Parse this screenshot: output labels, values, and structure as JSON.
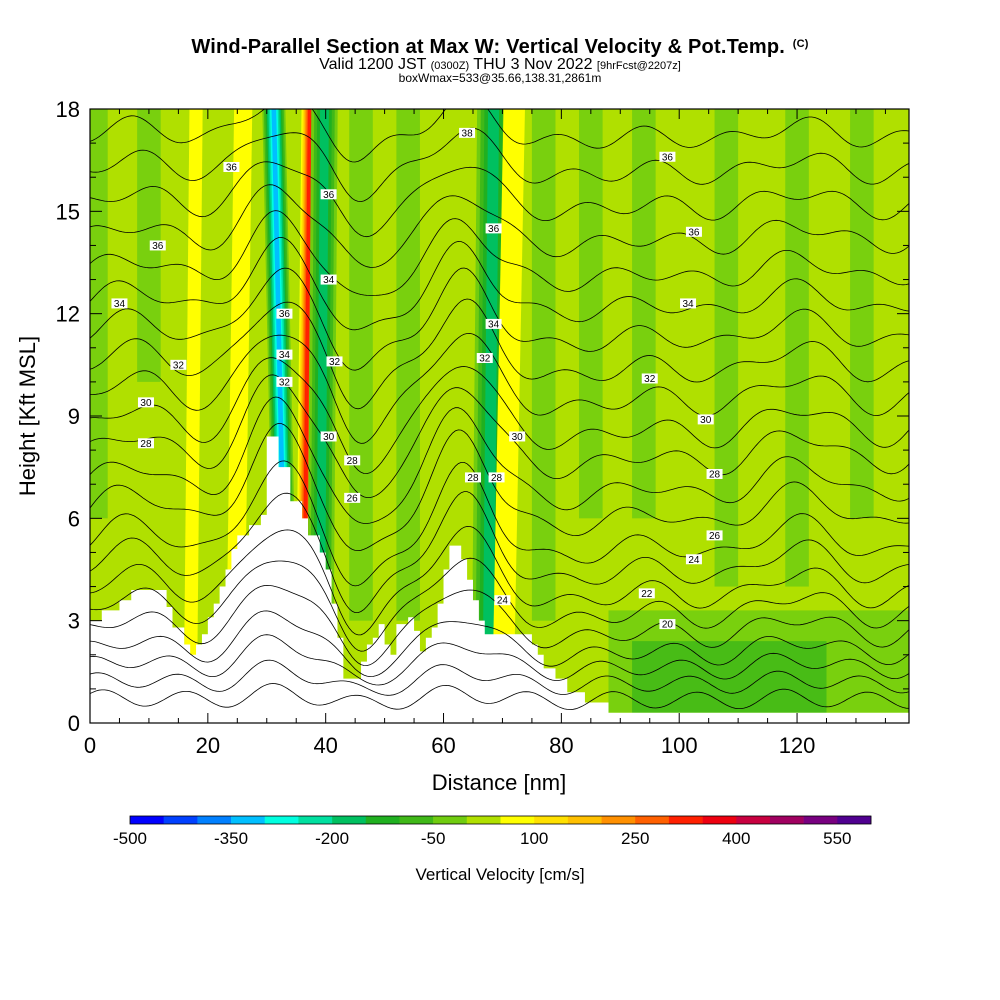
{
  "title": {
    "main": "Wind-Parallel Section at Max W: Vertical Velocity & Pot.Temp.",
    "copyright": "(C)",
    "valid_prefix": "Valid 1200 JST",
    "valid_utc": "(0300Z)",
    "valid_date": "THU 3 Nov 2022",
    "forecast": "[9hrFcst@2207z]",
    "boxwmax": "boxWmax=533@35.66,138.31,2861m"
  },
  "chart_data": {
    "type": "heatmap",
    "xlabel": "Distance [nm]",
    "ylabel": "Height [Kft MSL]",
    "xlim": [
      0,
      139
    ],
    "ylim": [
      0,
      18
    ],
    "x_ticks": [
      0,
      20,
      40,
      60,
      80,
      100,
      120
    ],
    "y_ticks": [
      0,
      3,
      6,
      9,
      12,
      15,
      18
    ],
    "colorbar": {
      "label": "Vertical Velocity [cm/s]",
      "tick_labels": [
        "-500",
        "-350",
        "-200",
        "-50",
        "100",
        "250",
        "400",
        "550"
      ],
      "colors": [
        "#0000ff",
        "#0040ff",
        "#0080ff",
        "#00bfff",
        "#00ffe0",
        "#00e0a0",
        "#00c060",
        "#20b020",
        "#40b818",
        "#70cc10",
        "#b0e000",
        "#ffff00",
        "#ffe000",
        "#ffc000",
        "#ff9000",
        "#ff6000",
        "#ff2000",
        "#ee0010",
        "#c80040",
        "#a00060",
        "#780080",
        "#500090"
      ]
    },
    "background_band": "#b0e000",
    "updraft_bands": [
      {
        "x_bottom": 33.5,
        "x_top": 31.2,
        "peak": "#00bfff",
        "width": 1.4
      },
      {
        "x_bottom": 36.2,
        "x_top": 37.3,
        "peak": "#ff2000",
        "width": 1.0
      },
      {
        "x_bottom": 39.0,
        "x_top": 39.8,
        "peak": "#00c060",
        "width": 1.6
      },
      {
        "x_bottom": 67.5,
        "x_top": 68.5,
        "peak": "#00c060",
        "width": 2.0
      },
      {
        "x_bottom": 70.0,
        "x_top": 72.0,
        "peak": "#ffff00",
        "width": 1.3
      },
      {
        "x_bottom": 24.5,
        "x_top": 26.0,
        "peak": "#ffff00",
        "width": 1.1
      },
      {
        "x_bottom": 17.0,
        "x_top": 18.0,
        "peak": "#ffff00",
        "width": 0.8
      }
    ],
    "terrain": [
      [
        0,
        3.0
      ],
      [
        2,
        3.0
      ],
      [
        2,
        3.3
      ],
      [
        5,
        3.3
      ],
      [
        5,
        3.6
      ],
      [
        7,
        3.6
      ],
      [
        7,
        3.9
      ],
      [
        13,
        3.9
      ],
      [
        13,
        3.4
      ],
      [
        14,
        3.4
      ],
      [
        14,
        2.8
      ],
      [
        16,
        2.8
      ],
      [
        16,
        2.3
      ],
      [
        17,
        2.3
      ],
      [
        17,
        2.0
      ],
      [
        18,
        2.0
      ],
      [
        18,
        2.3
      ],
      [
        19,
        2.3
      ],
      [
        19,
        2.6
      ],
      [
        20,
        2.6
      ],
      [
        20,
        3.1
      ],
      [
        21,
        3.1
      ],
      [
        21,
        3.5
      ],
      [
        22,
        3.5
      ],
      [
        22,
        4.0
      ],
      [
        23,
        4.0
      ],
      [
        23,
        4.5
      ],
      [
        24,
        4.5
      ],
      [
        24,
        5.1
      ],
      [
        25,
        5.1
      ],
      [
        25,
        5.5
      ],
      [
        27,
        5.5
      ],
      [
        27,
        5.8
      ],
      [
        29,
        5.8
      ],
      [
        29,
        6.1
      ],
      [
        30,
        6.1
      ],
      [
        30,
        8.4
      ],
      [
        32,
        8.4
      ],
      [
        32,
        7.5
      ],
      [
        34,
        7.5
      ],
      [
        34,
        6.5
      ],
      [
        36,
        6.5
      ],
      [
        36,
        6.0
      ],
      [
        37,
        6.0
      ],
      [
        37,
        5.5
      ],
      [
        39,
        5.5
      ],
      [
        39,
        5.0
      ],
      [
        40,
        5.0
      ],
      [
        40,
        4.5
      ],
      [
        41,
        4.5
      ],
      [
        41,
        3.5
      ],
      [
        42,
        3.5
      ],
      [
        42,
        2.5
      ],
      [
        43,
        2.5
      ],
      [
        43,
        1.3
      ],
      [
        46,
        1.3
      ],
      [
        46,
        1.8
      ],
      [
        47,
        1.8
      ],
      [
        47,
        2.3
      ],
      [
        48,
        2.3
      ],
      [
        48,
        2.5
      ],
      [
        49,
        2.5
      ],
      [
        49,
        2.9
      ],
      [
        50,
        2.9
      ],
      [
        50,
        2.3
      ],
      [
        51,
        2.3
      ],
      [
        51,
        2.0
      ],
      [
        52,
        2.0
      ],
      [
        52,
        2.9
      ],
      [
        54,
        2.9
      ],
      [
        54,
        3.1
      ],
      [
        55,
        3.1
      ],
      [
        55,
        2.7
      ],
      [
        56,
        2.7
      ],
      [
        56,
        2.1
      ],
      [
        57,
        2.1
      ],
      [
        57,
        2.5
      ],
      [
        58,
        2.5
      ],
      [
        58,
        2.8
      ],
      [
        59,
        2.8
      ],
      [
        59,
        3.5
      ],
      [
        60,
        3.5
      ],
      [
        60,
        4.5
      ],
      [
        61,
        4.5
      ],
      [
        61,
        5.2
      ],
      [
        63,
        5.2
      ],
      [
        63,
        4.8
      ],
      [
        64,
        4.8
      ],
      [
        64,
        4.2
      ],
      [
        65,
        4.2
      ],
      [
        65,
        3.6
      ],
      [
        66,
        3.6
      ],
      [
        66,
        3.0
      ],
      [
        67,
        3.0
      ],
      [
        67,
        2.6
      ],
      [
        75,
        2.6
      ],
      [
        75,
        2.3
      ],
      [
        76,
        2.3
      ],
      [
        76,
        2.0
      ],
      [
        77,
        2.0
      ],
      [
        77,
        1.6
      ],
      [
        79,
        1.6
      ],
      [
        79,
        1.3
      ],
      [
        81,
        1.3
      ],
      [
        81,
        0.9
      ],
      [
        84,
        0.9
      ],
      [
        84,
        0.6
      ],
      [
        88,
        0.6
      ],
      [
        88,
        0.3
      ],
      [
        139,
        0.3
      ],
      [
        139,
        0
      ]
    ],
    "isentropes": [
      {
        "label": "20",
        "base": 0.7,
        "amp": 0.2
      },
      {
        "label": "",
        "base": 1.2,
        "amp": 0.4
      },
      {
        "label": "",
        "base": 1.7,
        "amp": 0.7
      },
      {
        "label": "22",
        "base": 2.2,
        "amp": 1.0
      },
      {
        "label": "",
        "base": 2.8,
        "amp": 1.3
      },
      {
        "label": "24",
        "base": 3.4,
        "amp": 1.5
      },
      {
        "label": "",
        "base": 4.0,
        "amp": 1.7
      },
      {
        "label": "26",
        "base": 4.7,
        "amp": 1.9
      },
      {
        "label": "",
        "base": 5.4,
        "amp": 2.0
      },
      {
        "label": "28",
        "base": 6.3,
        "amp": 2.1
      },
      {
        "label": "",
        "base": 7.1,
        "amp": 2.1
      },
      {
        "label": "30",
        "base": 8.0,
        "amp": 2.0
      },
      {
        "label": "",
        "base": 8.8,
        "amp": 1.9
      },
      {
        "label": "32",
        "base": 9.7,
        "amp": 1.8
      },
      {
        "label": "",
        "base": 10.6,
        "amp": 1.7
      },
      {
        "label": "34",
        "base": 11.5,
        "amp": 1.6
      },
      {
        "label": "",
        "base": 12.4,
        "amp": 1.5
      },
      {
        "label": "36",
        "base": 13.3,
        "amp": 1.4
      },
      {
        "label": "",
        "base": 14.3,
        "amp": 1.3
      },
      {
        "label": "",
        "base": 15.3,
        "amp": 1.2
      },
      {
        "label": "",
        "base": 16.3,
        "amp": 1.1
      },
      {
        "label": "",
        "base": 17.3,
        "amp": 1.0
      }
    ],
    "contour_labels": [
      {
        "text": "36",
        "x": 24,
        "y": 16.3
      },
      {
        "text": "36",
        "x": 11.5,
        "y": 14.0
      },
      {
        "text": "34",
        "x": 5,
        "y": 12.3
      },
      {
        "text": "32",
        "x": 15,
        "y": 10.5
      },
      {
        "text": "30",
        "x": 9.5,
        "y": 9.4
      },
      {
        "text": "28",
        "x": 9.5,
        "y": 8.2
      },
      {
        "text": "36",
        "x": 40.5,
        "y": 15.5
      },
      {
        "text": "34",
        "x": 40.5,
        "y": 13.0
      },
      {
        "text": "32",
        "x": 41.5,
        "y": 10.6
      },
      {
        "text": "30",
        "x": 40.5,
        "y": 8.4
      },
      {
        "text": "28",
        "x": 44.5,
        "y": 7.7
      },
      {
        "text": "26",
        "x": 44.5,
        "y": 6.6
      },
      {
        "text": "36",
        "x": 33,
        "y": 12.0
      },
      {
        "text": "34",
        "x": 33,
        "y": 10.8
      },
      {
        "text": "32",
        "x": 33,
        "y": 10.0
      },
      {
        "text": "38",
        "x": 64,
        "y": 17.3
      },
      {
        "text": "36",
        "x": 68.5,
        "y": 14.5
      },
      {
        "text": "34",
        "x": 68.5,
        "y": 11.7
      },
      {
        "text": "32",
        "x": 67,
        "y": 10.7
      },
      {
        "text": "30",
        "x": 72.5,
        "y": 8.4
      },
      {
        "text": "28",
        "x": 65,
        "y": 7.2
      },
      {
        "text": "28",
        "x": 69,
        "y": 7.2
      },
      {
        "text": "24",
        "x": 70,
        "y": 3.6
      },
      {
        "text": "36",
        "x": 98,
        "y": 16.6
      },
      {
        "text": "36",
        "x": 102.5,
        "y": 14.4
      },
      {
        "text": "34",
        "x": 101.5,
        "y": 12.3
      },
      {
        "text": "32",
        "x": 95,
        "y": 10.1
      },
      {
        "text": "30",
        "x": 104.5,
        "y": 8.9
      },
      {
        "text": "28",
        "x": 106,
        "y": 7.3
      },
      {
        "text": "26",
        "x": 106,
        "y": 5.5
      },
      {
        "text": "24",
        "x": 102.5,
        "y": 4.8
      },
      {
        "text": "22",
        "x": 94.5,
        "y": 3.8
      },
      {
        "text": "20",
        "x": 98,
        "y": 2.9
      }
    ]
  }
}
